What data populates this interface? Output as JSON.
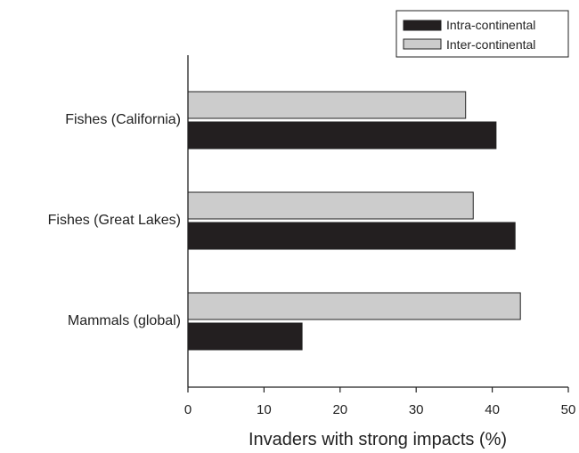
{
  "chart_data": {
    "type": "bar",
    "orientation": "horizontal",
    "categories": [
      "Fishes (California)",
      "Fishes (Great Lakes)",
      "Mammals (global)"
    ],
    "series": [
      {
        "name": "Intra-continental",
        "values": [
          40.5,
          43.0,
          15.0
        ],
        "color": "#231f20"
      },
      {
        "name": "Inter-continental",
        "values": [
          36.5,
          37.5,
          43.7
        ],
        "color": "#cccccc"
      }
    ],
    "xlabel": "Invaders with strong impacts (%)",
    "ylabel": "",
    "xlim": [
      0,
      50
    ],
    "xticks": [
      "0",
      "10",
      "20",
      "30",
      "40",
      "50"
    ],
    "grid": false,
    "legend_position": "top-right"
  }
}
